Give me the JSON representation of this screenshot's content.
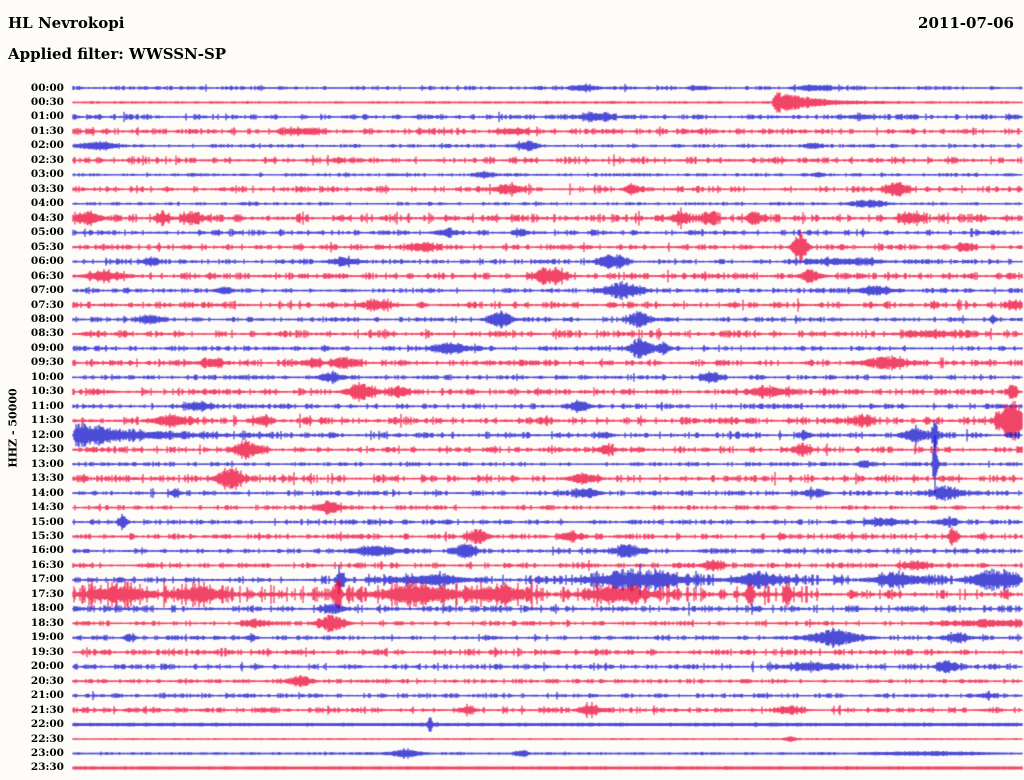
{
  "header": {
    "station": "HL Nevrokopi",
    "filter_line": "Applied filter: WWSSN-SP",
    "date": "2011-07-06"
  },
  "axis": {
    "scale_label": "HHZ - 50000"
  },
  "chart_data": {
    "type": "line",
    "subtype": "seismogram-helicorder",
    "station": "HL Nevrokopi",
    "date": "2011-07-06",
    "filter": "WWSSN-SP",
    "channel_scale": "HHZ - 50000",
    "row_duration_minutes": 30,
    "legend_position": "none",
    "grid": false,
    "colors": {
      "blue": "#1212cc",
      "red": "#ee0838",
      "text": "#000000",
      "background": "#fefcf8"
    },
    "rows_format": "t=row start time (label); c=trace color b|r; n=background noise half-amplitude px; m=minimum half-amplitude px; seg=[xStart,xEnd,noise] overrides; e=events [x_px, half_amplitude_px, width_px, optional 'd'=sharp onset with exponential decay]",
    "rows": [
      {
        "t": "00:00",
        "c": "b",
        "n": 1.1,
        "e": [
          [
            585,
            2.5,
            10
          ],
          [
            700,
            1.5,
            8
          ],
          [
            815,
            2.5,
            12
          ]
        ]
      },
      {
        "t": "00:30",
        "c": "r",
        "n": 0.4,
        "m": 0.7,
        "e": [
          [
            775,
            13,
            15,
            "d"
          ]
        ]
      },
      {
        "t": "01:00",
        "c": "b",
        "n": 1.5,
        "e": [
          [
            595,
            3.5,
            12
          ],
          [
            860,
            2,
            10
          ]
        ]
      },
      {
        "t": "01:30",
        "c": "r",
        "n": 1.7,
        "e": [
          [
            300,
            2.5,
            14
          ],
          [
            515,
            2.5,
            12
          ]
        ]
      },
      {
        "t": "02:00",
        "c": "b",
        "n": 0.9,
        "e": [
          [
            100,
            3.5,
            12
          ],
          [
            528,
            5,
            6
          ],
          [
            813,
            2.5,
            6
          ]
        ]
      },
      {
        "t": "02:30",
        "c": "r",
        "n": 2.1,
        "e": []
      },
      {
        "t": "03:00",
        "c": "b",
        "n": 0.8,
        "e": [
          [
            485,
            2.5,
            6
          ],
          [
            818,
            2,
            4
          ]
        ]
      },
      {
        "t": "03:30",
        "c": "r",
        "n": 1.8,
        "e": [
          [
            510,
            4.5,
            10
          ],
          [
            633,
            3.5,
            6
          ],
          [
            897,
            5.5,
            8
          ]
        ]
      },
      {
        "t": "04:00",
        "c": "b",
        "n": 0.8,
        "e": [
          [
            868,
            3.5,
            12
          ]
        ]
      },
      {
        "t": "04:30",
        "c": "r",
        "n": 2.5,
        "e": [
          [
            88,
            5,
            10
          ],
          [
            162,
            7,
            4
          ],
          [
            193,
            5,
            8
          ],
          [
            680,
            5.5,
            6
          ],
          [
            710,
            5.5,
            6
          ],
          [
            753,
            5.5,
            5
          ],
          [
            913,
            4.5,
            8
          ]
        ]
      },
      {
        "t": "05:00",
        "c": "b",
        "n": 1.6,
        "e": [
          [
            447,
            3.5,
            8
          ],
          [
            523,
            3,
            4
          ]
        ]
      },
      {
        "t": "05:30",
        "c": "r",
        "n": 1.6,
        "e": [
          [
            422,
            4,
            10
          ],
          [
            800,
            14,
            5
          ],
          [
            965,
            4.5,
            5
          ]
        ]
      },
      {
        "t": "06:00",
        "c": "b",
        "n": 1.4,
        "e": [
          [
            152,
            4,
            5
          ],
          [
            345,
            3.5,
            10
          ],
          [
            612,
            7,
            9
          ],
          [
            840,
            2.8,
            25
          ]
        ]
      },
      {
        "t": "06:30",
        "c": "r",
        "n": 2.0,
        "e": [
          [
            105,
            4,
            14
          ],
          [
            550,
            8,
            10
          ],
          [
            810,
            5.5,
            7
          ]
        ]
      },
      {
        "t": "07:00",
        "c": "b",
        "n": 1.4,
        "e": [
          [
            225,
            3.5,
            6
          ],
          [
            622,
            8,
            13
          ],
          [
            875,
            3.5,
            12
          ]
        ]
      },
      {
        "t": "07:30",
        "c": "r",
        "n": 2.0,
        "e": [
          [
            375,
            3.5,
            12
          ],
          [
            1015,
            3.5,
            6
          ]
        ]
      },
      {
        "t": "08:00",
        "c": "b",
        "n": 1.4,
        "e": [
          [
            150,
            3.5,
            7
          ],
          [
            500,
            7,
            8
          ],
          [
            640,
            6.5,
            7
          ],
          [
            993,
            4,
            2
          ]
        ]
      },
      {
        "t": "08:30",
        "c": "r",
        "n": 2.1,
        "e": [
          [
            930,
            3,
            18
          ]
        ]
      },
      {
        "t": "09:00",
        "c": "b",
        "n": 1.4,
        "e": [
          [
            450,
            5.5,
            12
          ],
          [
            640,
            11,
            7
          ],
          [
            663,
            5.5,
            5
          ]
        ]
      },
      {
        "t": "09:30",
        "c": "r",
        "n": 1.8,
        "e": [
          [
            213,
            3.5,
            9
          ],
          [
            313,
            3.5,
            7
          ],
          [
            345,
            5.5,
            8
          ],
          [
            885,
            6,
            15
          ]
        ]
      },
      {
        "t": "10:00",
        "c": "b",
        "n": 1.3,
        "e": [
          [
            330,
            4.5,
            8
          ],
          [
            711,
            6.5,
            6
          ]
        ]
      },
      {
        "t": "10:30",
        "c": "r",
        "n": 1.8,
        "e": [
          [
            362,
            8,
            10
          ],
          [
            400,
            4.5,
            7
          ],
          [
            768,
            4.5,
            13
          ],
          [
            1013,
            7,
            3
          ]
        ]
      },
      {
        "t": "11:00",
        "c": "b",
        "n": 1.5,
        "e": [
          [
            198,
            4.5,
            9
          ],
          [
            580,
            4.5,
            7
          ]
        ]
      },
      {
        "t": "11:30",
        "c": "r",
        "n": 2.3,
        "e": [
          [
            170,
            5.5,
            11
          ],
          [
            262,
            4.5,
            6
          ],
          [
            862,
            4,
            7
          ],
          [
            1012,
            20,
            9
          ]
        ]
      },
      {
        "t": "12:00",
        "c": "b",
        "n": 1.8,
        "e": [
          [
            76,
            13,
            24,
            "d"
          ],
          [
            605,
            3,
            5
          ],
          [
            806,
            3,
            4
          ],
          [
            915,
            7,
            9
          ],
          [
            935,
            13,
            2
          ]
        ]
      },
      {
        "t": "12:30",
        "c": "r",
        "n": 1.8,
        "e": [
          [
            248,
            8,
            9
          ],
          [
            606,
            4.5,
            5
          ],
          [
            802,
            4.5,
            6
          ]
        ]
      },
      {
        "t": "13:00",
        "c": "b",
        "n": 1.1,
        "e": [
          [
            865,
            3,
            5
          ],
          [
            935,
            29,
            1.5
          ]
        ]
      },
      {
        "t": "13:30",
        "c": "r",
        "n": 2.1,
        "e": [
          [
            230,
            10,
            9
          ],
          [
            583,
            4.5,
            9
          ]
        ]
      },
      {
        "t": "14:00",
        "c": "b",
        "n": 1.4,
        "e": [
          [
            175,
            3,
            4
          ],
          [
            586,
            4.5,
            9
          ],
          [
            813,
            3.5,
            8
          ],
          [
            946,
            6.5,
            11
          ]
        ]
      },
      {
        "t": "14:30",
        "c": "r",
        "n": 1.2,
        "e": [
          [
            330,
            5.5,
            9
          ]
        ]
      },
      {
        "t": "15:00",
        "c": "b",
        "n": 1.4,
        "e": [
          [
            123,
            6.5,
            3
          ],
          [
            883,
            3.5,
            12
          ],
          [
            948,
            3.5,
            7
          ]
        ]
      },
      {
        "t": "15:30",
        "c": "r",
        "n": 1.6,
        "e": [
          [
            478,
            7,
            7
          ],
          [
            570,
            6,
            6
          ],
          [
            953,
            9,
            3
          ]
        ]
      },
      {
        "t": "16:00",
        "c": "b",
        "n": 1.4,
        "e": [
          [
            375,
            4.5,
            15
          ],
          [
            465,
            7,
            8
          ],
          [
            628,
            5.5,
            10
          ]
        ]
      },
      {
        "t": "16:30",
        "c": "r",
        "n": 1.6,
        "e": [
          [
            713,
            5.5,
            7
          ],
          [
            915,
            3.5,
            8
          ]
        ]
      },
      {
        "t": "17:00",
        "c": "b",
        "n": 1.6,
        "seg": [
          [
            73,
            320,
            1.6
          ],
          [
            320,
            560,
            2.6
          ],
          [
            560,
            1022,
            3.2
          ]
        ],
        "e": [
          [
            340,
            12,
            2.5
          ],
          [
            430,
            4,
            25
          ],
          [
            640,
            7.5,
            30
          ],
          [
            760,
            6,
            18
          ],
          [
            900,
            5,
            18
          ],
          [
            995,
            8.5,
            16
          ]
        ]
      },
      {
        "t": "17:30",
        "c": "r",
        "n": 5.2,
        "seg": [
          [
            73,
            818,
            5.2
          ],
          [
            818,
            1022,
            2.6
          ]
        ],
        "e": [
          [
            120,
            7,
            22
          ],
          [
            200,
            7,
            14
          ],
          [
            338,
            16,
            2.5
          ],
          [
            420,
            8,
            26
          ],
          [
            500,
            8,
            18
          ],
          [
            620,
            7,
            22
          ],
          [
            750,
            13,
            2.5
          ],
          [
            788,
            13,
            2.5
          ]
        ]
      },
      {
        "t": "18:00",
        "c": "b",
        "n": 2.0,
        "e": [
          [
            333,
            4.5,
            8
          ]
        ]
      },
      {
        "t": "18:30",
        "c": "r",
        "n": 1.3,
        "e": [
          [
            255,
            3.5,
            8
          ],
          [
            332,
            8,
            9
          ],
          [
            990,
            2.5,
            35
          ]
        ]
      },
      {
        "t": "19:00",
        "c": "b",
        "n": 1.3,
        "e": [
          [
            130,
            3,
            4
          ],
          [
            252,
            3,
            4
          ],
          [
            835,
            7.5,
            17
          ],
          [
            958,
            4,
            9
          ]
        ]
      },
      {
        "t": "19:30",
        "c": "r",
        "n": 1.7,
        "e": []
      },
      {
        "t": "20:00",
        "c": "b",
        "n": 1.6,
        "e": [
          [
            810,
            3.5,
            17
          ],
          [
            948,
            6,
            7
          ]
        ]
      },
      {
        "t": "20:30",
        "c": "r",
        "n": 1.2,
        "e": [
          [
            300,
            5.5,
            8
          ]
        ]
      },
      {
        "t": "21:00",
        "c": "b",
        "n": 1.2,
        "e": [
          [
            988,
            2,
            6
          ]
        ]
      },
      {
        "t": "21:30",
        "c": "r",
        "n": 1.6,
        "e": [
          [
            467,
            3,
            6
          ],
          [
            590,
            5.5,
            7
          ],
          [
            790,
            3.5,
            8
          ]
        ]
      },
      {
        "t": "22:00",
        "c": "b",
        "n": 0.35,
        "m": 1.3,
        "e": [
          [
            430,
            8.5,
            1.5
          ]
        ]
      },
      {
        "t": "22:30",
        "c": "r",
        "n": 0.25,
        "m": 0.6,
        "e": [
          [
            790,
            2,
            4
          ]
        ]
      },
      {
        "t": "23:00",
        "c": "b",
        "n": 0.5,
        "m": 0.7,
        "e": [
          [
            405,
            4,
            9
          ],
          [
            522,
            3.5,
            4
          ],
          [
            930,
            1.5,
            35
          ]
        ]
      },
      {
        "t": "23:30",
        "c": "r",
        "n": 0.25,
        "m": 1.3,
        "e": []
      }
    ]
  }
}
